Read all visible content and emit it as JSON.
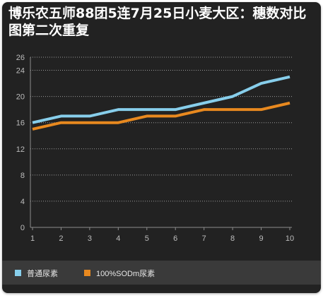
{
  "chart_data": {
    "type": "line",
    "title": "博乐农五师88团5连7月25日小麦大区：穗数对比图第二次重复",
    "xlabel": "",
    "ylabel": "",
    "x": [
      "1",
      "2",
      "3",
      "4",
      "5",
      "6",
      "7",
      "8",
      "9",
      "10"
    ],
    "y_ticks": [
      "0",
      "4",
      "8",
      "12",
      "16",
      "20",
      "24",
      "26"
    ],
    "ylim": [
      0,
      26
    ],
    "grid": true,
    "legend_position": "bottom",
    "series": [
      {
        "name": "普通尿素",
        "color": "#87ceeb",
        "values": [
          16,
          17,
          17,
          18,
          18,
          18,
          19,
          20,
          22,
          23
        ]
      },
      {
        "name": "100%SODm尿素",
        "color": "#e8891f",
        "values": [
          15,
          16,
          16,
          16,
          17,
          17,
          18,
          18,
          18,
          19
        ]
      }
    ]
  }
}
